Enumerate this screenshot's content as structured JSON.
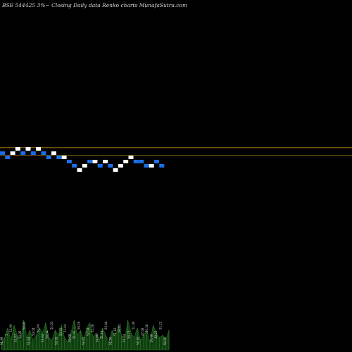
{
  "title": "BSE 544425 3%~  Closing Daily data  Renko  charts MunafaSutra.com",
  "colors": {
    "background": "#000000",
    "up_brick": "#ffffff",
    "down_brick": "#1a6fe8",
    "reference_line": "#b8860b",
    "volume_fill": "#0f3d0f",
    "volume_edge": "#2f7f2f"
  },
  "chart_data": {
    "type": "renko",
    "brick_size_text": "3%",
    "bricks": [
      {
        "dir": "down",
        "level": 0
      },
      {
        "dir": "down",
        "level": -1
      },
      {
        "dir": "up",
        "level": 0
      },
      {
        "dir": "up",
        "level": 1
      },
      {
        "dir": "down",
        "level": 0
      },
      {
        "dir": "up",
        "level": 1
      },
      {
        "dir": "down",
        "level": 0
      },
      {
        "dir": "up",
        "level": 1
      },
      {
        "dir": "down",
        "level": 0
      },
      {
        "dir": "down",
        "level": -1
      },
      {
        "dir": "up",
        "level": 0
      },
      {
        "dir": "down",
        "level": -1
      },
      {
        "dir": "up",
        "level": -1
      },
      {
        "dir": "down",
        "level": -2
      },
      {
        "dir": "down",
        "level": -3
      },
      {
        "dir": "up",
        "level": -4
      },
      {
        "dir": "up",
        "level": -3
      },
      {
        "dir": "down",
        "level": -2
      },
      {
        "dir": "up",
        "level": -2
      },
      {
        "dir": "down",
        "level": -3
      },
      {
        "dir": "up",
        "level": -2
      },
      {
        "dir": "down",
        "level": -3
      },
      {
        "dir": "up",
        "level": -4
      },
      {
        "dir": "up",
        "level": -3
      },
      {
        "dir": "up",
        "level": -2
      },
      {
        "dir": "up",
        "level": -1
      },
      {
        "dir": "down",
        "level": -2
      },
      {
        "dir": "down",
        "level": -2
      },
      {
        "dir": "down",
        "level": -3
      },
      {
        "dir": "up",
        "level": -3
      },
      {
        "dir": "down",
        "level": -2
      },
      {
        "dir": "down",
        "level": -3
      }
    ],
    "reference_levels": [
      0.95,
      -0.9
    ],
    "volume_values": [
      3,
      5,
      9,
      4,
      10,
      6,
      3,
      12,
      5,
      8,
      4,
      6,
      9,
      7,
      11,
      5,
      4,
      8,
      6,
      10,
      5,
      3,
      7,
      12,
      6,
      8,
      4,
      9,
      11,
      5,
      7,
      4,
      9,
      6,
      3,
      8,
      5,
      10,
      6,
      4,
      12,
      7,
      5,
      9,
      4,
      6,
      8,
      3,
      10,
      7,
      5,
      6,
      4,
      8
    ],
    "volume_labels": [
      "51.99",
      "1",
      "52.99",
      "51.97",
      "50.85",
      "50.83",
      "51.64",
      "50.04",
      "51.04",
      "51.04",
      "50.04",
      "51.53",
      "50.19",
      "50.75",
      "51.04",
      "49.08",
      "51.07",
      "50.26",
      "51.05",
      "52.04",
      "51.26",
      "50.60",
      "51.14",
      "52.44",
      "51.50",
      "51.10",
      "50.83",
      "51.64",
      "50.75",
      "51.06",
      "50.10",
      "47.06",
      "51.26",
      "50.68",
      "49.25",
      "51.22",
      "50.50"
    ]
  }
}
